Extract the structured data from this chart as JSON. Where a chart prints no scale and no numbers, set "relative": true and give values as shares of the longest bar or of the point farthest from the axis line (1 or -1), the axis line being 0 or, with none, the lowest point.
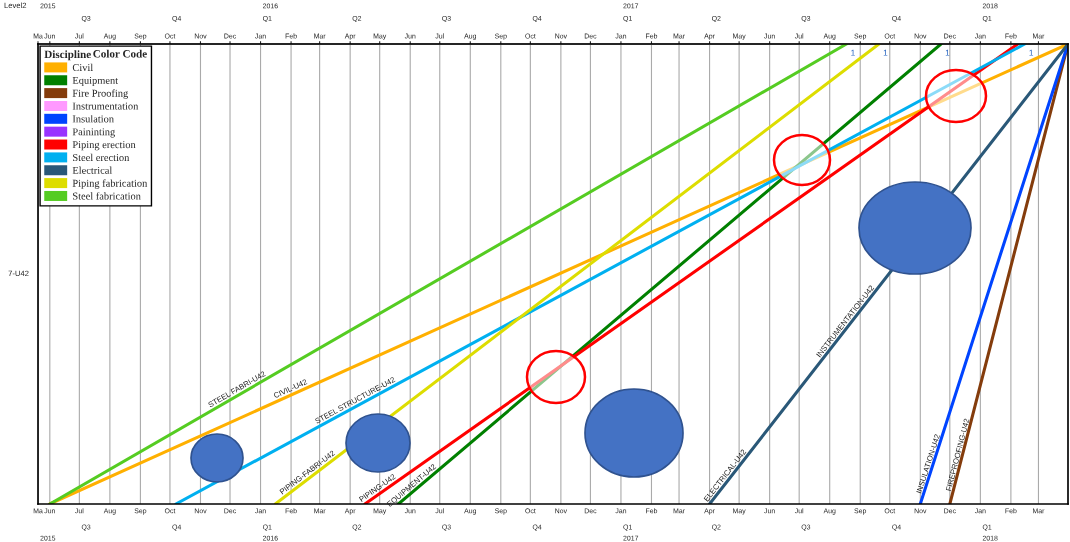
{
  "chart_data": {
    "type": "line",
    "title": "Level2",
    "ylabel": "7-U42",
    "legend_title": "Discipline",
    "relative": true,
    "grid": "x",
    "legend": "top left",
    "marker": "none",
    "line_style": "solid",
    "xlim": [
      "2015-05-20",
      "2018-03-31"
    ],
    "x2lim": [
      "2015-05-20",
      "2018-03-31"
    ],
    "xticks": [
      {
        "value": "2015-05-20",
        "label": "Ma"
      },
      {
        "value": "2015-06-01",
        "label": "Jun"
      },
      {
        "value": "2015-07-01",
        "label": "Jul"
      },
      {
        "value": "2015-08-01",
        "label": "Aug"
      },
      {
        "value": "2015-09-01",
        "label": "Sep"
      },
      {
        "value": "2015-10-01",
        "label": "Oct"
      },
      {
        "value": "2015-11-01",
        "label": "Nov"
      },
      {
        "value": "2015-12-01",
        "label": "Dec"
      },
      {
        "value": "2016-01-01",
        "label": "Jan"
      },
      {
        "value": "2016-02-01",
        "label": "Feb"
      },
      {
        "value": "2016-03-01",
        "label": "Mar"
      },
      {
        "value": "2016-04-01",
        "label": "Apr"
      },
      {
        "value": "2016-05-01",
        "label": "May"
      },
      {
        "value": "2016-06-01",
        "label": "Jun"
      },
      {
        "value": "2016-07-01",
        "label": "Jul"
      },
      {
        "value": "2016-08-01",
        "label": "Aug"
      },
      {
        "value": "2016-09-01",
        "label": "Sep"
      },
      {
        "value": "2016-10-01",
        "label": "Oct"
      },
      {
        "value": "2016-11-01",
        "label": "Nov"
      },
      {
        "value": "2016-12-01",
        "label": "Dec"
      },
      {
        "value": "2017-01-01",
        "label": "Jan"
      },
      {
        "value": "2017-02-01",
        "label": "Feb"
      },
      {
        "value": "2017-03-01",
        "label": "Mar"
      },
      {
        "value": "2017-04-01",
        "label": "Apr"
      },
      {
        "value": "2017-05-01",
        "label": "May"
      },
      {
        "value": "2017-06-01",
        "label": "Jun"
      },
      {
        "value": "2017-07-01",
        "label": "Jul"
      },
      {
        "value": "2017-08-01",
        "label": "Aug"
      },
      {
        "value": "2017-09-01",
        "label": "Sep"
      },
      {
        "value": "2017-10-01",
        "label": "Oct"
      },
      {
        "value": "2017-11-01",
        "label": "Nov"
      },
      {
        "value": "2017-12-01",
        "label": "Dec"
      },
      {
        "value": "2018-01-01",
        "label": "Jan"
      },
      {
        "value": "2018-02-01",
        "label": "Feb"
      },
      {
        "value": "2018-03-01",
        "label": "Mar"
      }
    ],
    "x2ticks": [
      {
        "value": "2015-05-20",
        "label": "Ma"
      },
      {
        "value": "2015-06-01",
        "label": "Jun"
      },
      {
        "value": "2015-07-01",
        "label": "Jul"
      },
      {
        "value": "2015-08-01",
        "label": "Aug"
      },
      {
        "value": "2015-09-01",
        "label": "Sep"
      },
      {
        "value": "2015-10-01",
        "label": "Oct"
      },
      {
        "value": "2015-11-01",
        "label": "Nov"
      },
      {
        "value": "2015-12-01",
        "label": "Dec"
      },
      {
        "value": "2016-01-01",
        "label": "Jan"
      },
      {
        "value": "2016-02-01",
        "label": "Feb"
      },
      {
        "value": "2016-03-01",
        "label": "Mar"
      },
      {
        "value": "2016-04-01",
        "label": "Apr"
      },
      {
        "value": "2016-05-01",
        "label": "May"
      },
      {
        "value": "2016-06-01",
        "label": "Jun"
      },
      {
        "value": "2016-07-01",
        "label": "Jul"
      },
      {
        "value": "2016-08-01",
        "label": "Aug"
      },
      {
        "value": "2016-09-01",
        "label": "Sep"
      },
      {
        "value": "2016-10-01",
        "label": "Oct"
      },
      {
        "value": "2016-11-01",
        "label": "Nov"
      },
      {
        "value": "2016-12-01",
        "label": "Dec"
      },
      {
        "value": "2017-01-01",
        "label": "Jan"
      },
      {
        "value": "2017-02-01",
        "label": "Feb"
      },
      {
        "value": "2017-03-01",
        "label": "Mar"
      },
      {
        "value": "2017-04-01",
        "label": "Apr"
      },
      {
        "value": "2017-05-01",
        "label": "May"
      },
      {
        "value": "2017-06-01",
        "label": "Jun"
      },
      {
        "value": "2017-07-01",
        "label": "Jul"
      },
      {
        "value": "2017-08-01",
        "label": "Aug"
      },
      {
        "value": "2017-09-01",
        "label": "Sep"
      },
      {
        "value": "2017-10-01",
        "label": "Oct"
      },
      {
        "value": "2017-11-01",
        "label": "Nov"
      },
      {
        "value": "2017-12-01",
        "label": "Dec"
      },
      {
        "value": "2018-01-01",
        "label": "Jan"
      },
      {
        "value": "2018-02-01",
        "label": "Feb"
      },
      {
        "value": "2018-03-01",
        "label": "Mar"
      }
    ],
    "series": [
      {
        "name": "Civil",
        "color": "#ffb000",
        "x": [
          "2015-06-01",
          "2018-03-31"
        ],
        "values": [
          0,
          1
        ]
      },
      {
        "name": "Equipment",
        "color": "#008000",
        "x": [
          "2016-05-20",
          "2017-11-22"
        ],
        "values": [
          0,
          1
        ]
      },
      {
        "name": "Fire Proofing",
        "color": "#843c0c",
        "x": [
          "2017-12-01",
          "2018-03-31"
        ],
        "values": [
          0,
          1
        ]
      },
      {
        "name": "Instrumentation",
        "color": "#ff99ff"
      },
      {
        "name": "Insulation",
        "color": "#0044ff",
        "x": [
          "2017-11-01",
          "2018-03-31"
        ],
        "values": [
          0,
          1
        ]
      },
      {
        "name": "Paininting",
        "color": "#9933ff"
      },
      {
        "name": "Piping erection",
        "color": "#ff0000",
        "x": [
          "2016-04-16",
          "2018-02-08"
        ],
        "values": [
          0,
          1
        ]
      },
      {
        "name": "Steel erection",
        "color": "#00b0f0",
        "x": [
          "2015-10-07",
          "2018-02-15"
        ],
        "values": [
          0,
          1
        ]
      },
      {
        "name": "Electrical",
        "color": "#2a5878",
        "x": [
          "2017-04-01",
          "2018-03-31"
        ],
        "values": [
          0,
          1
        ]
      },
      {
        "name": "Piping fabrication",
        "color": "#dddd00",
        "x": [
          "2016-01-16",
          "2017-09-20"
        ],
        "values": [
          0,
          1
        ]
      },
      {
        "name": "Steel fabrication",
        "color": "#55cc22",
        "x": [
          "2015-06-01",
          "2017-08-18"
        ],
        "values": [
          0,
          1
        ]
      }
    ],
    "annotations": [
      "Color Code",
      "2015",
      "2016",
      "2017",
      "2018",
      "Q3",
      "Q4",
      "Q1",
      "Q2",
      "Q3",
      "Q4",
      "Q1",
      "Q2",
      "Q3",
      "Q4",
      "Q1",
      {
        "text": "STEEL FABRI-U42",
        "x": "2015-12-10",
        "y": 0.237
      },
      {
        "text": "CIVIL-U42",
        "x": "2016-02-02",
        "y": 0.238
      },
      {
        "text": "STEEL STRUCTURE-U42",
        "x": "2016-04-08",
        "y": 0.213
      },
      {
        "text": "PIPING-FABRI-U42",
        "x": "2016-02-20",
        "y": 0.057
      },
      {
        "text": "PIPING-U42",
        "x": "2016-05-01",
        "y": 0.023
      },
      {
        "text": "EQUIPMENT-U42",
        "x": "2016-06-05",
        "y": 0.029
      },
      {
        "text": "ELECTRICAL-U42",
        "x": "2017-04-20",
        "y": 0.052
      },
      {
        "text": "INSTRUMENTATION-U42",
        "x": "2017-08-20",
        "y": 0.387
      },
      {
        "text": "INSULATION-U42",
        "x": "2017-11-13",
        "y": 0.08
      },
      {
        "text": "FIREPROOFING-U42",
        "x": "2017-12-13",
        "y": 0.1
      },
      {
        "text": "1",
        "x": "2017-08-18",
        "y": 1
      },
      {
        "text": "1",
        "x": "2017-09-20",
        "y": 1
      },
      {
        "text": "1",
        "x": "2017-11-22",
        "y": 1
      },
      {
        "text": "1",
        "x": "2018-02-15",
        "y": 1
      }
    ]
  }
}
